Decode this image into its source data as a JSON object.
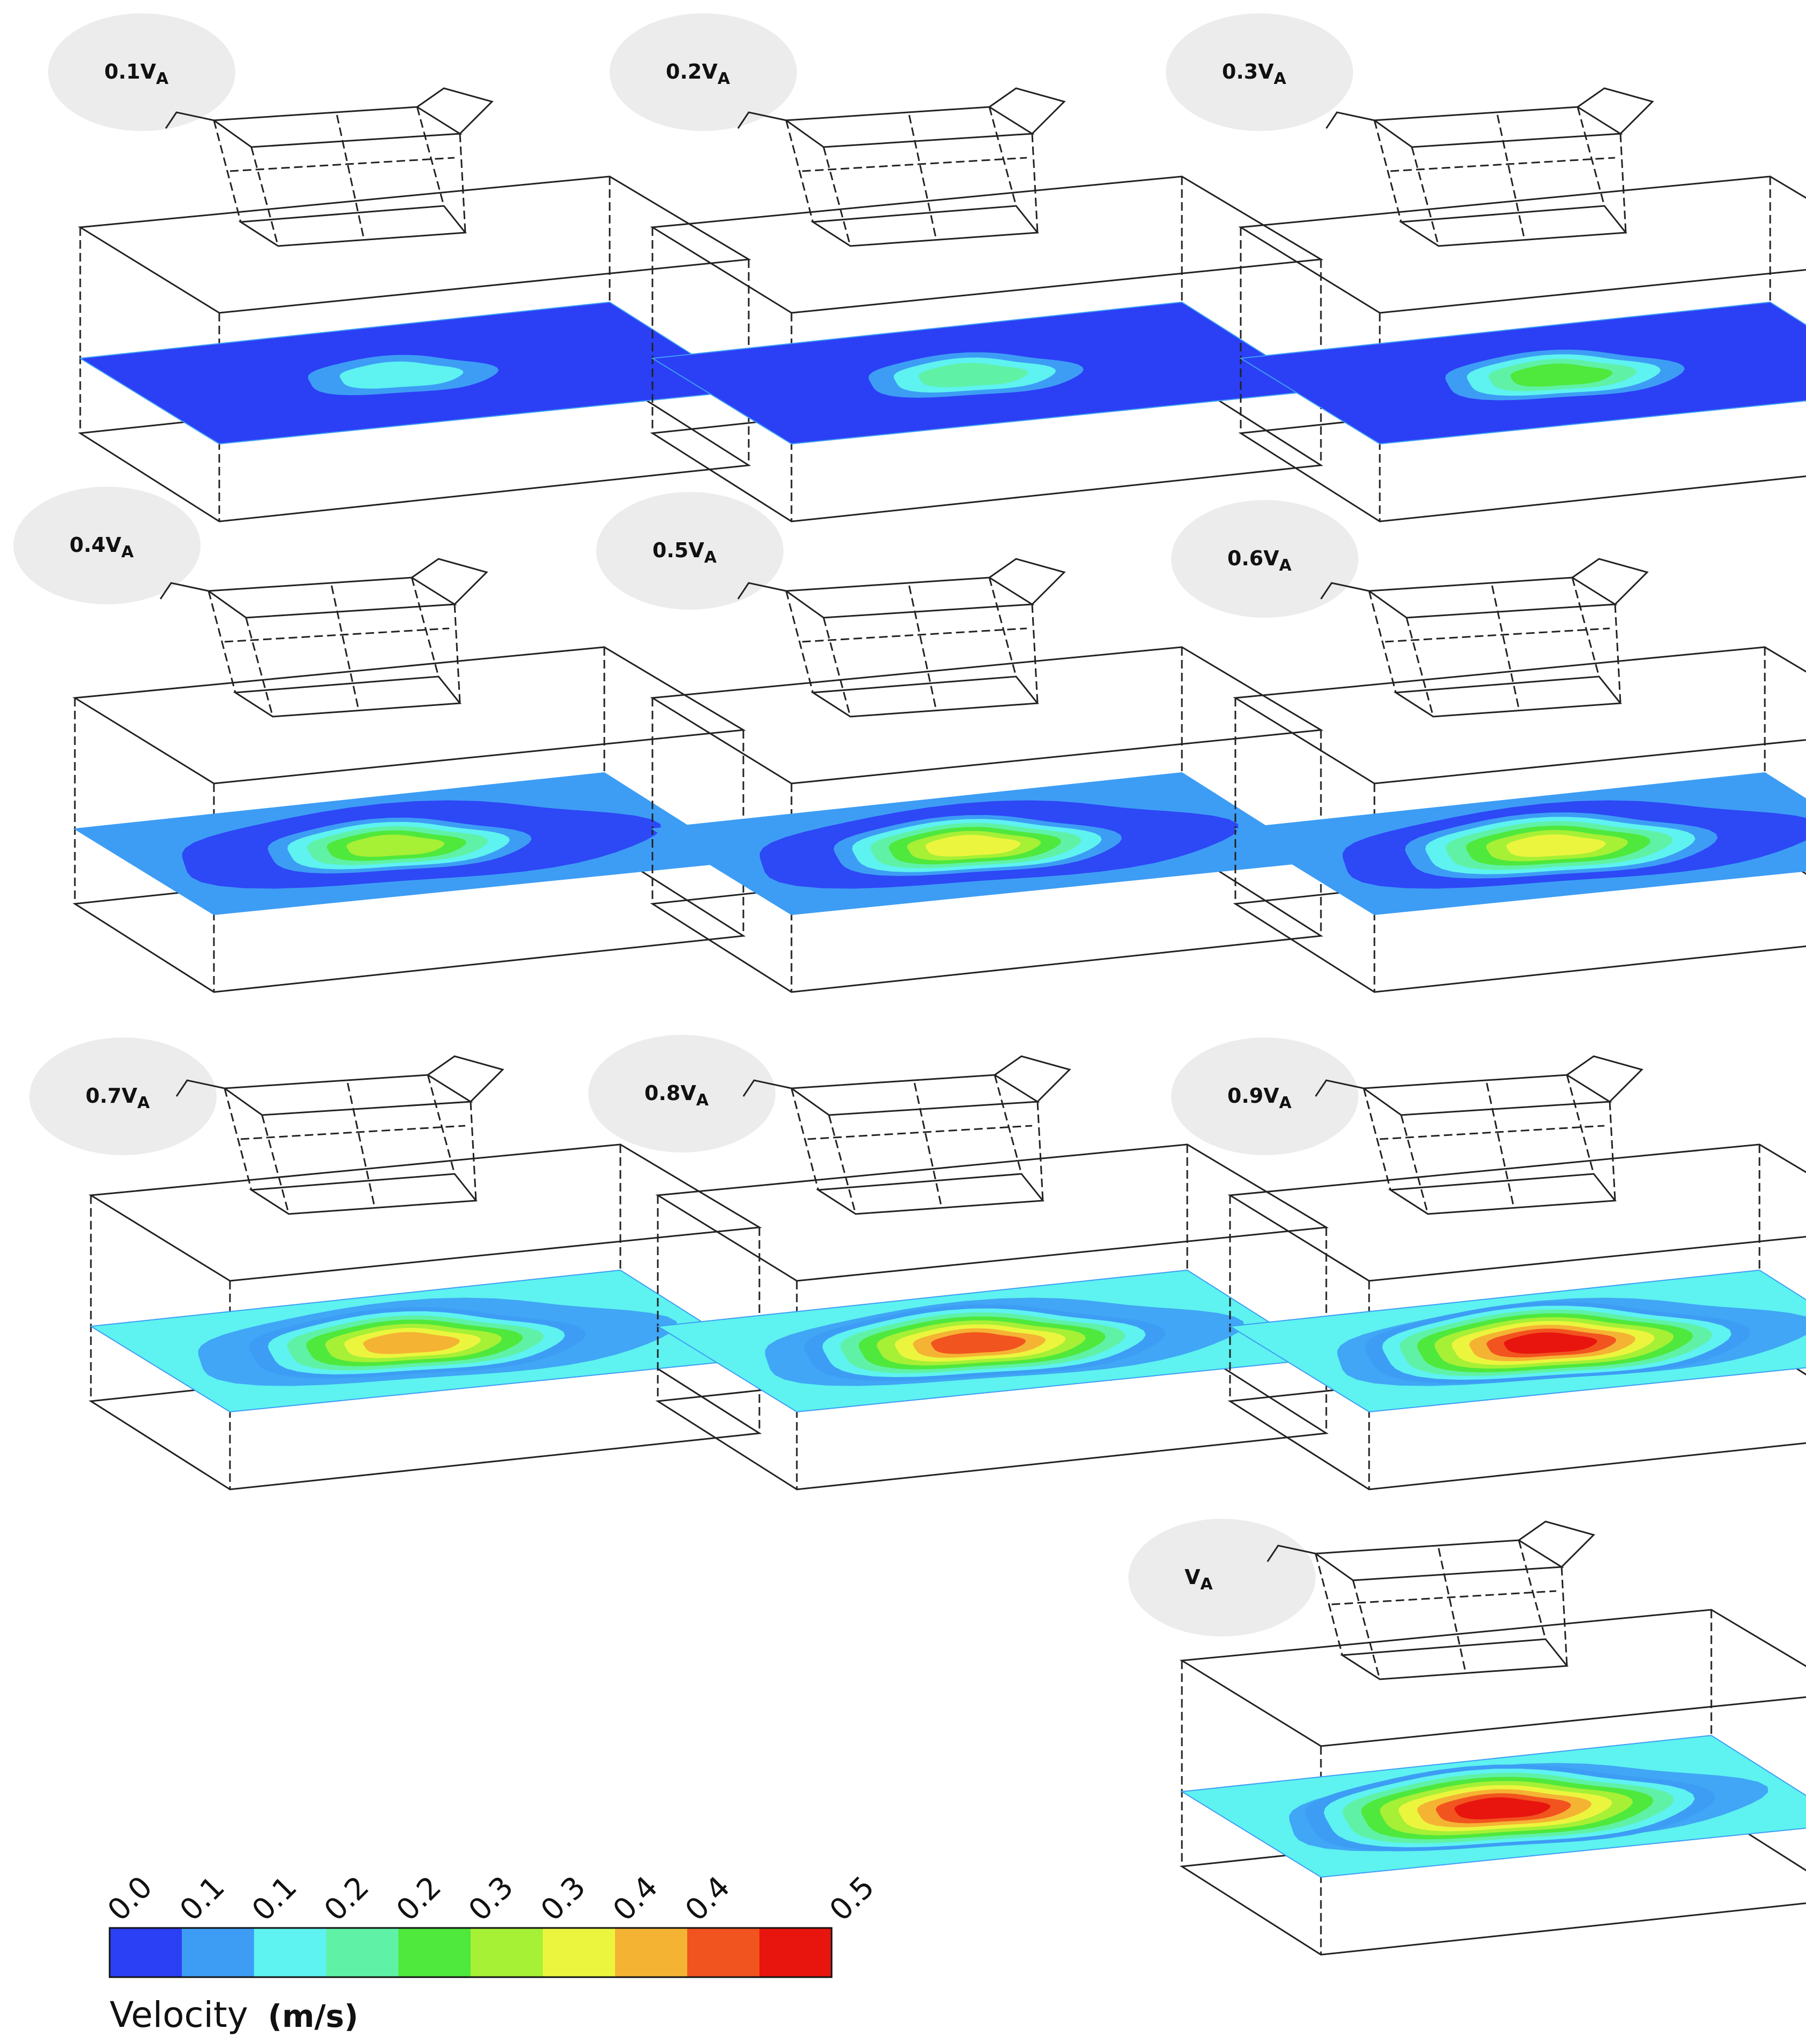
{
  "panels": [
    {
      "label": "0.1V",
      "subscript": "A",
      "level": 0.1
    },
    {
      "label": "0.2V",
      "subscript": "A",
      "level": 0.2
    },
    {
      "label": "0.3V",
      "subscript": "A",
      "level": 0.3
    },
    {
      "label": "0.4V",
      "subscript": "A",
      "level": 0.4
    },
    {
      "label": "0.5V",
      "subscript": "A",
      "level": 0.5
    },
    {
      "label": "0.6V",
      "subscript": "A",
      "level": 0.6
    },
    {
      "label": "0.7V",
      "subscript": "A",
      "level": 0.7
    },
    {
      "label": "0.8V",
      "subscript": "A",
      "level": 0.8
    },
    {
      "label": "0.9V",
      "subscript": "A",
      "level": 0.9
    },
    {
      "label": "V",
      "subscript": "A",
      "level": 1.0
    }
  ],
  "legend": {
    "title": "Velocity",
    "unit": "(m/s)",
    "ticks": [
      "0.0",
      "0.1",
      "0.1",
      "0.2",
      "0.2",
      "0.3",
      "0.3",
      "0.4",
      "0.4",
      "0.5"
    ],
    "colors": [
      "#2b3ff5",
      "#3d9df5",
      "#5ef2f0",
      "#5ff2a6",
      "#4fe83c",
      "#a6f036",
      "#ecf53e",
      "#f5b334",
      "#f2541f",
      "#e8150e"
    ]
  }
}
